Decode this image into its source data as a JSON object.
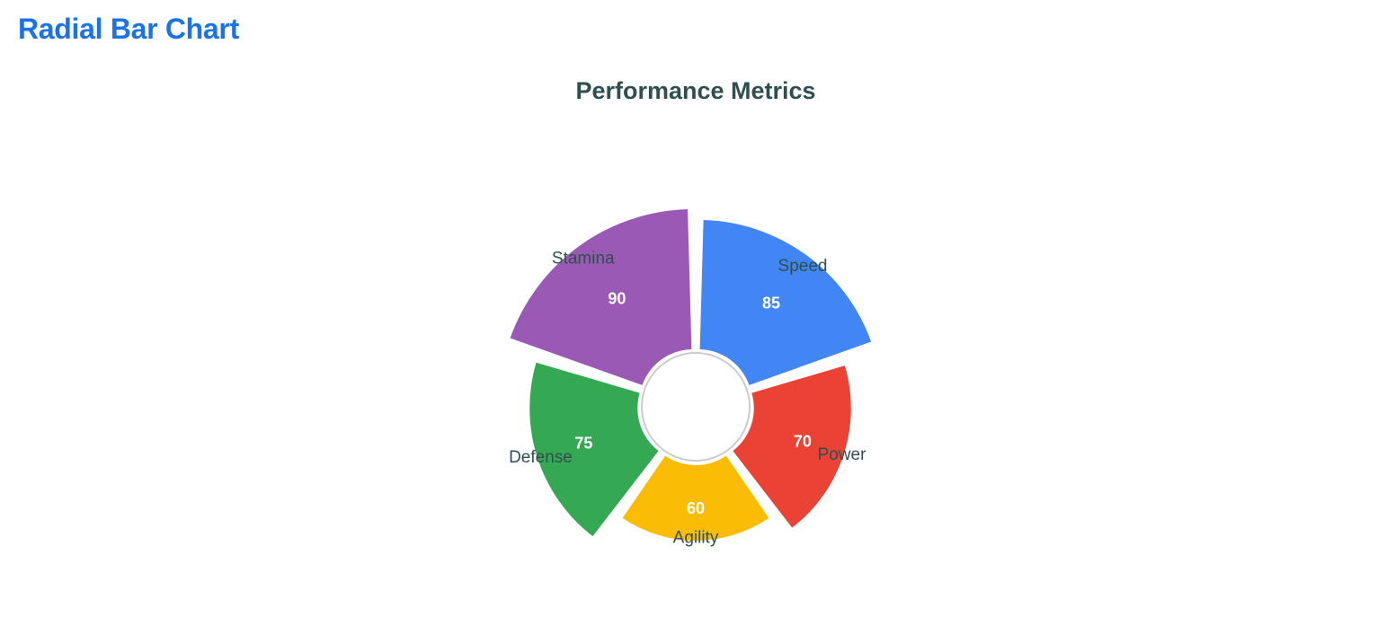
{
  "page": {
    "heading": "Radial Bar Chart"
  },
  "chart_data": {
    "type": "radial-bar",
    "title": "Performance Metrics",
    "categories": [
      "Speed",
      "Power",
      "Agility",
      "Defense",
      "Stamina"
    ],
    "values": [
      85,
      70,
      60,
      75,
      90
    ],
    "colors": [
      "#4285f4",
      "#ea4335",
      "#fbbc05",
      "#34a853",
      "#9b59b6"
    ],
    "value_label_color": "#ffffff",
    "inner_circle_color": "#ffffff",
    "inner_circle_stroke": "#cccccc"
  }
}
